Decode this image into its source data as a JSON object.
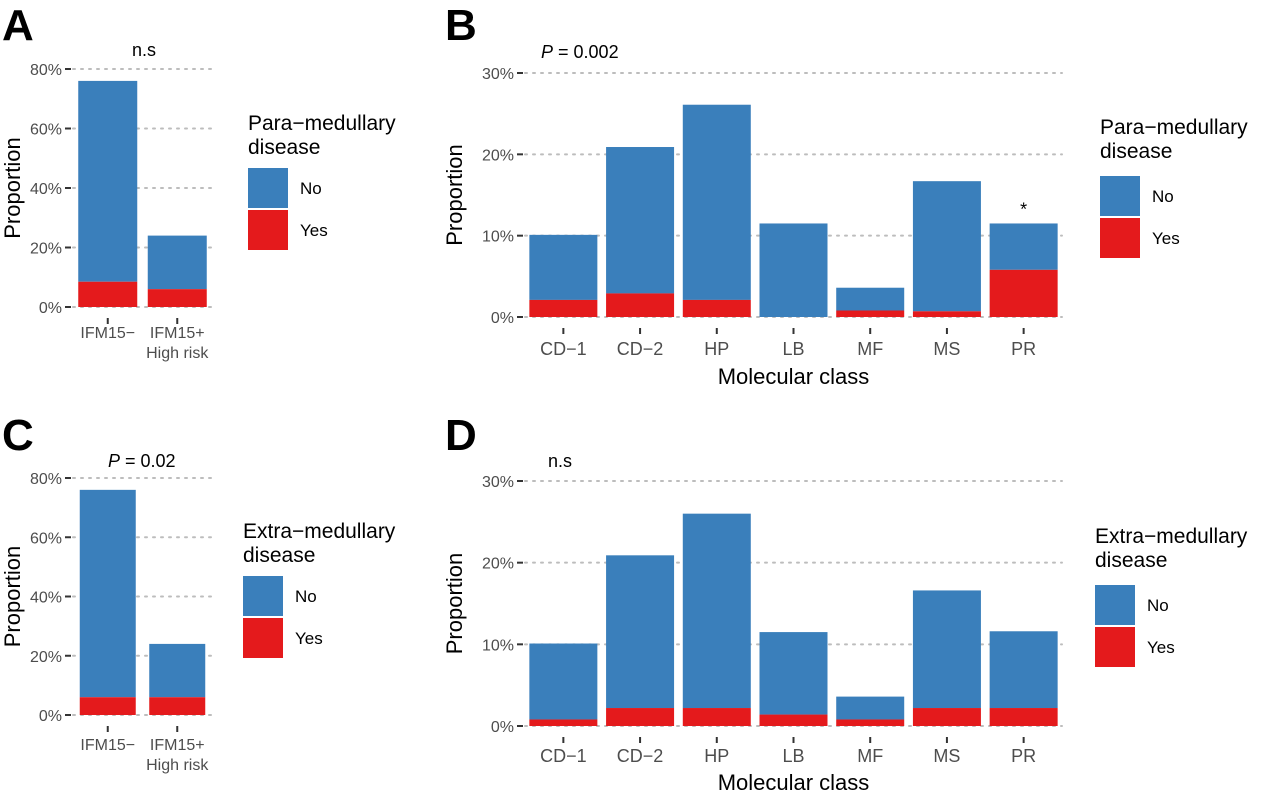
{
  "chart_data": [
    {
      "panel": "A",
      "type": "bar",
      "stacked": true,
      "annotation": "n.s",
      "annotation_italic_prefix": "",
      "categories": [
        "IFM15−",
        "IFM15+\nHigh risk"
      ],
      "series": [
        {
          "name": "No",
          "color": "#3a7fbb",
          "values": [
            67.5,
            18
          ]
        },
        {
          "name": "Yes",
          "color": "#e41a1c",
          "values": [
            8.5,
            6
          ]
        }
      ],
      "ylabel": "Proportion",
      "xlabel": "",
      "yticks": [
        "0%",
        "20%",
        "40%",
        "60%",
        "80%"
      ],
      "ylim": [
        0,
        80
      ],
      "legend_title": "Para−medullary\ndisease",
      "legend_labels": [
        "No",
        "Yes"
      ],
      "star_labels": [
        "",
        ""
      ]
    },
    {
      "panel": "B",
      "type": "bar",
      "stacked": true,
      "annotation": " = 0.002",
      "annotation_italic_prefix": "P",
      "categories": [
        "CD−1",
        "CD−2",
        "HP",
        "LB",
        "MF",
        "MS",
        "PR"
      ],
      "series": [
        {
          "name": "No",
          "color": "#3a7fbb",
          "values": [
            8,
            18,
            24,
            11.5,
            2.8,
            16,
            5.7
          ]
        },
        {
          "name": "Yes",
          "color": "#e41a1c",
          "values": [
            2.1,
            2.9,
            2.1,
            0,
            0.8,
            0.7,
            5.8
          ]
        }
      ],
      "ylabel": "Proportion",
      "xlabel": "Molecular class",
      "yticks": [
        "0%",
        "10%",
        "20%",
        "30%"
      ],
      "ylim": [
        0,
        30
      ],
      "legend_title": "Para−medullary\ndisease",
      "legend_labels": [
        "No",
        "Yes"
      ],
      "star_labels": [
        "",
        "",
        "",
        "",
        "",
        "",
        "*"
      ]
    },
    {
      "panel": "C",
      "type": "bar",
      "stacked": true,
      "annotation": " = 0.02",
      "annotation_italic_prefix": "P",
      "categories": [
        "IFM15−",
        "IFM15+\nHigh risk"
      ],
      "series": [
        {
          "name": "No",
          "color": "#3a7fbb",
          "values": [
            70,
            18
          ]
        },
        {
          "name": "Yes",
          "color": "#e41a1c",
          "values": [
            6,
            6
          ]
        }
      ],
      "ylabel": "Proportion",
      "xlabel": "",
      "yticks": [
        "0%",
        "20%",
        "40%",
        "60%",
        "80%"
      ],
      "ylim": [
        0,
        80
      ],
      "legend_title": "Extra−medullary\ndisease",
      "legend_labels": [
        "No",
        "Yes"
      ],
      "star_labels": [
        "",
        ""
      ]
    },
    {
      "panel": "D",
      "type": "bar",
      "stacked": true,
      "annotation": "n.s",
      "annotation_italic_prefix": "",
      "categories": [
        "CD−1",
        "CD−2",
        "HP",
        "LB",
        "MF",
        "MS",
        "PR"
      ],
      "series": [
        {
          "name": "No",
          "color": "#3a7fbb",
          "values": [
            9.3,
            18.7,
            23.8,
            10.1,
            2.8,
            14.4,
            9.4
          ]
        },
        {
          "name": "Yes",
          "color": "#e41a1c",
          "values": [
            0.8,
            2.2,
            2.2,
            1.4,
            0.8,
            2.2,
            2.2
          ]
        }
      ],
      "ylabel": "Proportion",
      "xlabel": "Molecular class",
      "yticks": [
        "0%",
        "10%",
        "20%",
        "30%"
      ],
      "ylim": [
        0,
        30
      ],
      "legend_title": "Extra−medullary\ndisease",
      "legend_labels": [
        "No",
        "Yes"
      ],
      "star_labels": [
        "",
        "",
        "",
        "",
        "",
        "",
        ""
      ]
    }
  ]
}
